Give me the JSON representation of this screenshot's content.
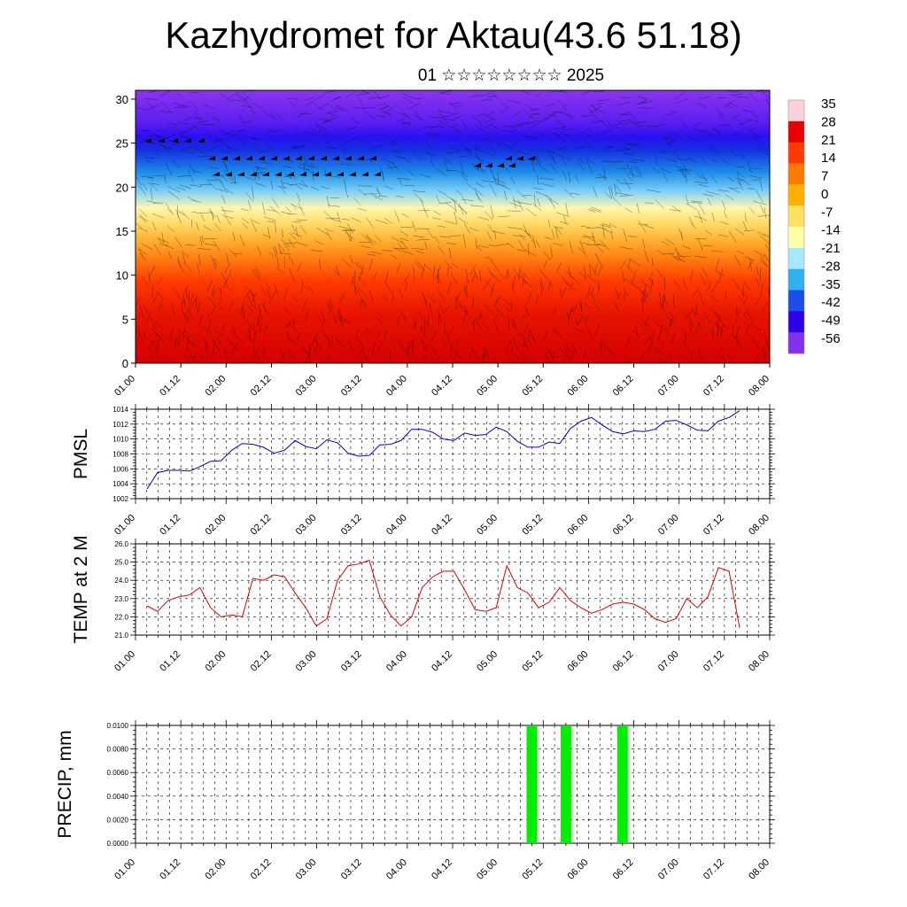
{
  "header": {
    "title": "Kazhydromet for Aktau(43.6 51.18)",
    "subtitle": "01 ☆☆☆☆☆☆☆☆ 2025"
  },
  "colors": {
    "pmsl_line": "#0000cc",
    "temp_line": "#dd0000",
    "precip_bar": "#00ee00",
    "colorbar": [
      "#ffd0d8",
      "#e80000",
      "#ff3a00",
      "#ff7a00",
      "#ffb000",
      "#ffe060",
      "#ffffa8",
      "#a8e8ff",
      "#30b0f0",
      "#1a50e8",
      "#2e00e8",
      "#8430f0"
    ]
  },
  "chart_data": [
    {
      "type": "heatmap",
      "title": "",
      "xlabel": "",
      "ylabel": "",
      "ylim": [
        0,
        31
      ],
      "xlim": [
        0,
        14
      ],
      "x_tick_labels": [
        "01.00",
        "01.12",
        "02.00",
        "02.12",
        "03.00",
        "03.12",
        "04.00",
        "04.12",
        "05.00",
        "05.12",
        "06.00",
        "06.12",
        "07.00",
        "07.12",
        "08.00"
      ],
      "y_ticks": [
        0,
        5,
        10,
        15,
        20,
        25,
        30
      ],
      "colorbar_labels": [
        "35",
        "28",
        "21",
        "14",
        "7",
        "0",
        "-7",
        "-14",
        "-21",
        "-28",
        "-35",
        "-42",
        "-49",
        "-56"
      ],
      "description_levels": {
        "surface_temperature": 28,
        "top_temperature": -56
      }
    },
    {
      "type": "line",
      "ylabel": "PMSL",
      "ylim": [
        1002,
        1014
      ],
      "y_ticks": [
        "1002",
        "1004",
        "1006",
        "1008",
        "1010",
        "1012",
        "1014"
      ],
      "x_tick_labels": [
        "01.00",
        "01.12",
        "02.00",
        "02.12",
        "03.00",
        "03.12",
        "04.00",
        "04.12",
        "05.00",
        "05.12",
        "06.00",
        "06.12",
        "07.00",
        "07.12",
        "08.00"
      ],
      "series": [
        {
          "values": [
            1003.3,
            1005.5,
            1005.8,
            1005.8,
            1005.7,
            1006.3,
            1007.0,
            1007.1,
            1008.5,
            1009.4,
            1009.3,
            1008.9,
            1008.1,
            1008.5,
            1009.8,
            1009.0,
            1008.7,
            1009.9,
            1009.5,
            1008.1,
            1007.7,
            1007.8,
            1009.2,
            1009.3,
            1009.8,
            1011.3,
            1011.3,
            1010.9,
            1010.0,
            1009.8,
            1010.8,
            1010.5,
            1010.6,
            1011.6,
            1011.0,
            1009.7,
            1008.9,
            1008.9,
            1009.6,
            1009.4,
            1011.4,
            1012.4,
            1012.9,
            1011.9,
            1011.0,
            1010.7,
            1011.1,
            1011.0,
            1011.3,
            1012.4,
            1012.5,
            1011.9,
            1011.2,
            1011.1,
            1012.4,
            1012.9,
            1013.8
          ]
        }
      ]
    },
    {
      "type": "line",
      "ylabel": "TEMP at 2 M",
      "ylim": [
        21.0,
        26.0
      ],
      "y_ticks": [
        "21.0",
        "22.0",
        "23.0",
        "24.0",
        "25.0",
        "26.0"
      ],
      "x_tick_labels": [
        "01.00",
        "01.12",
        "02.00",
        "02.12",
        "03.00",
        "03.12",
        "04.00",
        "04.12",
        "05.00",
        "05.12",
        "06.00",
        "06.12",
        "07.00",
        "07.12",
        "08.00"
      ],
      "series": [
        {
          "values": [
            22.6,
            22.3,
            22.9,
            23.1,
            23.2,
            23.6,
            22.5,
            22.0,
            22.1,
            22.0,
            24.1,
            24.0,
            24.3,
            24.2,
            23.3,
            22.5,
            21.5,
            21.9,
            24.0,
            24.8,
            24.9,
            25.1,
            23.1,
            22.1,
            21.5,
            22.0,
            23.6,
            24.2,
            24.5,
            24.5,
            23.5,
            22.4,
            22.3,
            22.5,
            24.8,
            23.6,
            23.3,
            22.5,
            22.8,
            23.6,
            22.9,
            22.5,
            22.2,
            22.4,
            22.7,
            22.8,
            22.7,
            22.4,
            21.9,
            21.7,
            21.9,
            23.0,
            22.5,
            23.1,
            24.7,
            24.5,
            21.4
          ]
        }
      ]
    },
    {
      "type": "bar",
      "ylabel": "PRECIP, mm",
      "ylim": [
        0,
        0.01
      ],
      "y_ticks": [
        "0.0000",
        "0.0020",
        "0.0040",
        "0.0060",
        "0.0080",
        "0.0100"
      ],
      "x_tick_labels": [
        "01.00",
        "01.12",
        "02.00",
        "02.12",
        "03.00",
        "03.12",
        "04.00",
        "04.12",
        "05.00",
        "05.12",
        "06.00",
        "06.12",
        "07.00",
        "07.12",
        "08.00"
      ],
      "bars": [
        {
          "x": 8.75,
          "value": 0.01
        },
        {
          "x": 9.5,
          "value": 0.01
        },
        {
          "x": 10.75,
          "value": 0.01
        }
      ]
    }
  ]
}
